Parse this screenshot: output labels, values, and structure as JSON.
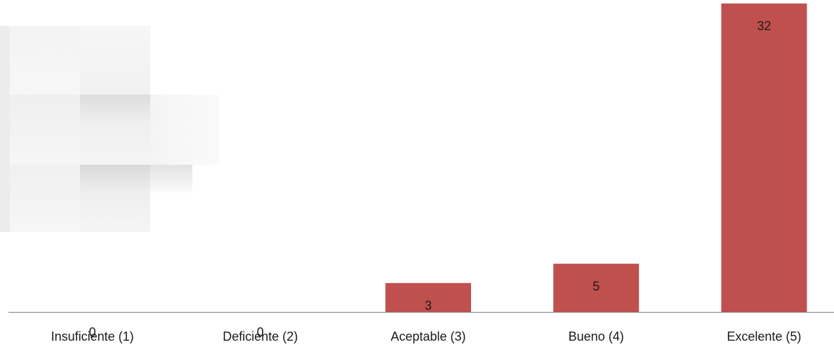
{
  "chart_data": {
    "type": "bar",
    "categories": [
      "Insuficiente (1)",
      "Deficiente (2)",
      "Aceptable (3)",
      "Bueno (4)",
      "Excelente (5)"
    ],
    "values": [
      0,
      0,
      3,
      5,
      32
    ],
    "data_labels": [
      "0",
      "0",
      "3",
      "5",
      "32"
    ],
    "title": "",
    "xlabel": "",
    "ylabel": "",
    "ylim": [
      0,
      33
    ],
    "bar_color": "#c0504d",
    "axis_color": "#808080",
    "grid": false,
    "legend": "none"
  }
}
